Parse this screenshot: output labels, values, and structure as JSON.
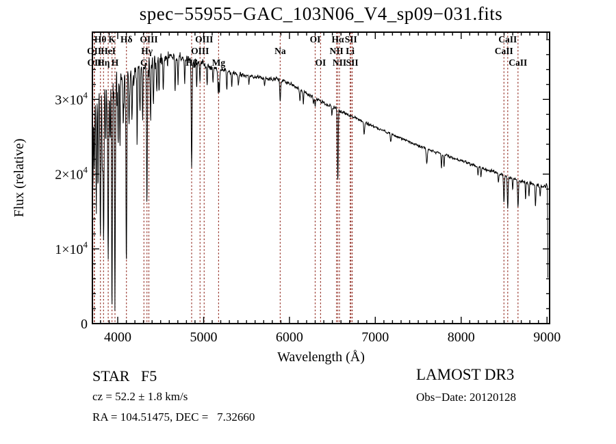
{
  "title": "spec−55955−GAC_103N06_V4_sp09−031.fits",
  "annotations": {
    "star_class": "STAR   F5",
    "cz": "cz = 52.2 ± 1.8 km/s",
    "ra_dec": "RA = 104.51475, DEC =   7.32660",
    "survey": "LAMOST DR3",
    "obs_date": "Obs−Date: 20120128"
  },
  "chart_data": {
    "type": "line",
    "title": "spec−55955−GAC_103N06_V4_sp09−031.fits",
    "xlabel": "Wavelength (Å)",
    "ylabel": "Flux (relative)",
    "xlim": [
      3705,
      9030
    ],
    "ylim": [
      0,
      39000
    ],
    "grid": false,
    "x_major_ticks": [
      4000,
      5000,
      6000,
      7000,
      8000,
      9000
    ],
    "x_minor_step": 100,
    "y_major_ticks": [
      {
        "value": 0,
        "label": "0"
      },
      {
        "value": 10000,
        "label": "1×10^4"
      },
      {
        "value": 20000,
        "label": "2×10^4"
      },
      {
        "value": 30000,
        "label": "3×10^4"
      }
    ],
    "y_minor_step": 2000,
    "line_color": "#000000",
    "marker_color": "#97352b",
    "spectral_lines": [
      {
        "label": "OII",
        "wave": 3726,
        "row": 2
      },
      {
        "label": "OII",
        "wave": 3729,
        "row": 3
      },
      {
        "label": "Hθ",
        "wave": 3798,
        "row": 1
      },
      {
        "label": "Hη",
        "wave": 3835,
        "row": 3
      },
      {
        "label": "HeI",
        "wave": 3889,
        "row": 2
      },
      {
        "label": "K",
        "wave": 3933,
        "row": 1
      },
      {
        "label": "H",
        "wave": 3968,
        "row": 3
      },
      {
        "label": "Hδ",
        "wave": 4101,
        "row": 1
      },
      {
        "label": "G",
        "wave": 4305,
        "row": 3
      },
      {
        "label": "Hγ",
        "wave": 4340,
        "row": 2
      },
      {
        "label": "OIII",
        "wave": 4363,
        "row": 1
      },
      {
        "label": "Hβ",
        "wave": 4861,
        "row": 3
      },
      {
        "label": "OIII",
        "wave": 4959,
        "row": 2
      },
      {
        "label": "OIII",
        "wave": 5007,
        "row": 1
      },
      {
        "label": "Mg",
        "wave": 5175,
        "row": 3
      },
      {
        "label": "Na",
        "wave": 5892,
        "row": 2
      },
      {
        "label": "OI",
        "wave": 6300,
        "row": 1
      },
      {
        "label": "OI",
        "wave": 6363,
        "row": 3
      },
      {
        "label": "NII",
        "wave": 6548,
        "row": 2
      },
      {
        "label": "Hα",
        "wave": 6563,
        "row": 1
      },
      {
        "label": "NII",
        "wave": 6583,
        "row": 3
      },
      {
        "label": "Li",
        "wave": 6707,
        "row": 2
      },
      {
        "label": "SII",
        "wave": 6716,
        "row": 1
      },
      {
        "label": "SII",
        "wave": 6731,
        "row": 3
      },
      {
        "label": "CaII",
        "wave": 8498,
        "row": 2
      },
      {
        "label": "CaII",
        "wave": 8542,
        "row": 1
      },
      {
        "label": "CaII",
        "wave": 8662,
        "row": 3
      }
    ],
    "spectrum": {
      "description": "F5 star spectrum, flux vs wavelength; continuum anchors [Å, flux], absorption lines [Å, depth, sigma], noise segments [up-to Å, amplitude]",
      "continuum": [
        [
          3705,
          26500
        ],
        [
          3720,
          30200
        ],
        [
          3760,
          30800
        ],
        [
          3800,
          31200
        ],
        [
          3850,
          31600
        ],
        [
          3900,
          32000
        ],
        [
          3950,
          32300
        ],
        [
          4000,
          32600
        ],
        [
          4100,
          33200
        ],
        [
          4200,
          33900
        ],
        [
          4300,
          34400
        ],
        [
          4400,
          34900
        ],
        [
          4500,
          35300
        ],
        [
          4600,
          35600
        ],
        [
          4700,
          35600
        ],
        [
          4800,
          35300
        ],
        [
          4900,
          35000
        ],
        [
          5000,
          34700
        ],
        [
          5100,
          34300
        ],
        [
          5200,
          34000
        ],
        [
          5300,
          33700
        ],
        [
          5400,
          33400
        ],
        [
          5500,
          33200
        ],
        [
          5600,
          33000
        ],
        [
          5700,
          32900
        ],
        [
          5800,
          32800
        ],
        [
          5900,
          32600
        ],
        [
          6000,
          32200
        ],
        [
          6100,
          31500
        ],
        [
          6200,
          30800
        ],
        [
          6300,
          30100
        ],
        [
          6400,
          29500
        ],
        [
          6500,
          29000
        ],
        [
          6600,
          28400
        ],
        [
          6700,
          27900
        ],
        [
          6800,
          27400
        ],
        [
          6900,
          26800
        ],
        [
          7000,
          26300
        ],
        [
          7100,
          25800
        ],
        [
          7200,
          25300
        ],
        [
          7300,
          24800
        ],
        [
          7400,
          24300
        ],
        [
          7500,
          23800
        ],
        [
          7600,
          23400
        ],
        [
          7700,
          23000
        ],
        [
          7800,
          22600
        ],
        [
          7900,
          22200
        ],
        [
          8000,
          21800
        ],
        [
          8100,
          21400
        ],
        [
          8200,
          21000
        ],
        [
          8300,
          20600
        ],
        [
          8400,
          20200
        ],
        [
          8500,
          19800
        ],
        [
          8600,
          19400
        ],
        [
          8700,
          19100
        ],
        [
          8800,
          18800
        ],
        [
          8900,
          18500
        ],
        [
          8970,
          18400
        ],
        [
          9000,
          18600
        ],
        [
          9006,
          18000
        ],
        [
          9012,
          400
        ]
      ],
      "absorption_lines": [
        [
          3712,
          9000,
          4
        ],
        [
          3727,
          10000,
          4
        ],
        [
          3750,
          14000,
          4
        ],
        [
          3770,
          12000,
          4
        ],
        [
          3798,
          19000,
          5
        ],
        [
          3820,
          9000,
          4
        ],
        [
          3835,
          21000,
          5
        ],
        [
          3860,
          8000,
          4
        ],
        [
          3889,
          23500,
          5
        ],
        [
          3910,
          7000,
          4
        ],
        [
          3933,
          29500,
          5
        ],
        [
          3968,
          27500,
          5
        ],
        [
          4005,
          8000,
          4
        ],
        [
          4026,
          9000,
          4
        ],
        [
          4064,
          7000,
          4
        ],
        [
          4101,
          26000,
          5
        ],
        [
          4132,
          7000,
          4
        ],
        [
          4167,
          6000,
          4
        ],
        [
          4226,
          9000,
          4
        ],
        [
          4260,
          6000,
          4
        ],
        [
          4290,
          7000,
          4
        ],
        [
          4340,
          18500,
          5
        ],
        [
          4383,
          8000,
          4
        ],
        [
          4415,
          6000,
          4
        ],
        [
          4455,
          4000,
          4
        ],
        [
          4481,
          5000,
          4
        ],
        [
          4530,
          4500,
          4
        ],
        [
          4668,
          5000,
          4
        ],
        [
          4703,
          3500,
          4
        ],
        [
          4780,
          3000,
          4
        ],
        [
          4861,
          14000,
          5
        ],
        [
          4920,
          3000,
          4
        ],
        [
          4957,
          2500,
          4
        ],
        [
          5041,
          2500,
          4
        ],
        [
          5110,
          2000,
          4
        ],
        [
          5170,
          3200,
          5
        ],
        [
          5184,
          3000,
          4
        ],
        [
          5270,
          2500,
          4
        ],
        [
          5328,
          2000,
          4
        ],
        [
          5406,
          1500,
          4
        ],
        [
          5528,
          1200,
          4
        ],
        [
          5710,
          1200,
          4
        ],
        [
          5892,
          3000,
          5
        ],
        [
          6122,
          1500,
          4
        ],
        [
          6162,
          1600,
          4
        ],
        [
          6280,
          900,
          4
        ],
        [
          6300,
          900,
          4
        ],
        [
          6495,
          1200,
          4
        ],
        [
          6563,
          9500,
          5
        ],
        [
          6870,
          1800,
          5
        ],
        [
          7180,
          1200,
          5
        ],
        [
          7600,
          2000,
          6
        ],
        [
          7770,
          1900,
          4
        ],
        [
          7800,
          1700,
          4
        ],
        [
          8195,
          1300,
          4
        ],
        [
          8230,
          1100,
          4
        ],
        [
          8434,
          1200,
          4
        ],
        [
          8498,
          3600,
          5
        ],
        [
          8542,
          4100,
          5
        ],
        [
          8600,
          1500,
          4
        ],
        [
          8662,
          3700,
          5
        ],
        [
          8750,
          2200,
          4
        ],
        [
          8790,
          1800,
          4
        ],
        [
          8865,
          2800,
          5
        ],
        [
          8920,
          1500,
          4
        ]
      ],
      "noise_profile": [
        [
          4150,
          2200
        ],
        [
          4600,
          1500
        ],
        [
          5000,
          1000
        ],
        [
          5500,
          600
        ],
        [
          6000,
          500
        ],
        [
          6600,
          420
        ],
        [
          7200,
          350
        ],
        [
          8000,
          300
        ],
        [
          8600,
          380
        ],
        [
          9100,
          420
        ]
      ],
      "seed": 7,
      "sample_step": 3
    }
  }
}
